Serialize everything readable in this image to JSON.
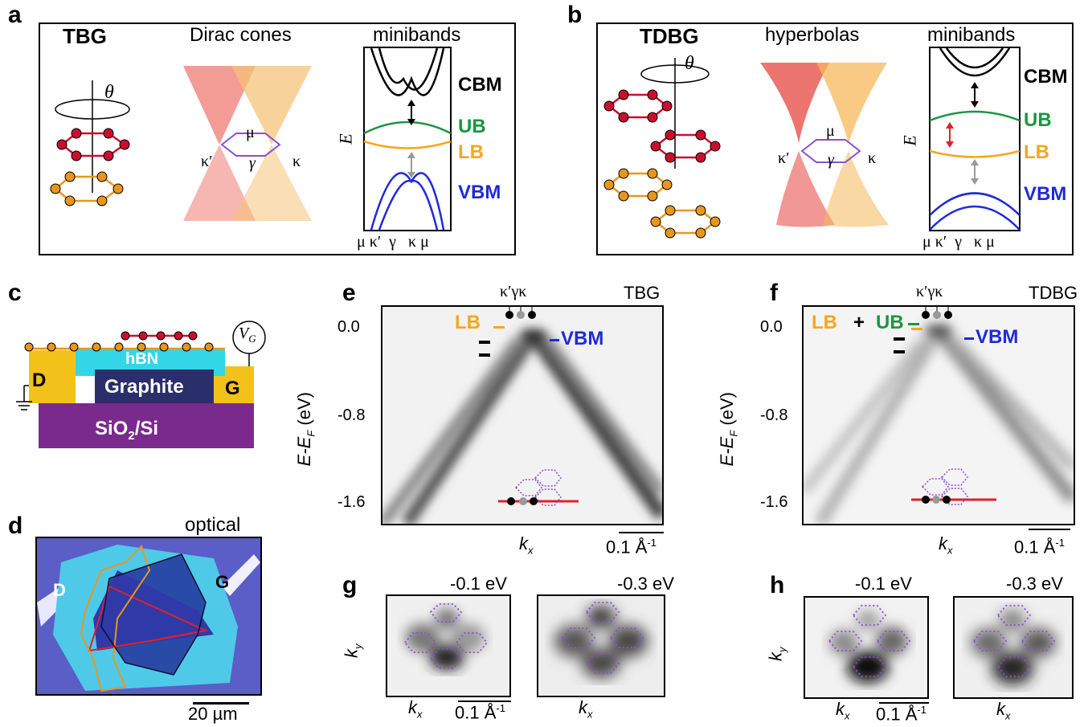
{
  "panels": {
    "a": "a",
    "b": "b",
    "c": "c",
    "d": "d",
    "e": "e",
    "f": "f",
    "g": "g",
    "h": "h"
  },
  "panel_a": {
    "title": "TBG",
    "theta": "θ",
    "cones_title": "Dirac cones",
    "minibands_title": "minibands",
    "energy_axis": "E",
    "mu": "μ",
    "kprime": "κ′",
    "gamma": "γ",
    "kappa": "κ",
    "band_labels": {
      "cbm": "CBM",
      "ub": "UB",
      "lb": "LB",
      "vbm": "VBM"
    },
    "k_ticks": "μ κ′  γ   κ μ"
  },
  "panel_b": {
    "title": "TDBG",
    "theta": "θ",
    "cones_title": "hyperbolas",
    "minibands_title": "minibands",
    "energy_axis": "E",
    "mu": "μ",
    "kprime": "κ′",
    "gamma": "γ",
    "kappa": "κ",
    "band_labels": {
      "cbm": "CBM",
      "ub": "UB",
      "lb": "LB",
      "vbm": "VBM"
    },
    "k_ticks": "μ κ′  γ   κ μ"
  },
  "panel_c": {
    "hbn": "hBN",
    "graphite": "Graphite",
    "substrate": "SiO",
    "substrate_sub": "2",
    "substrate_tail": "/Si",
    "drain": "D",
    "gate": "G",
    "vg": "V",
    "vg_sub": "G"
  },
  "panel_d": {
    "label": "optical",
    "drain": "D",
    "gate": "G",
    "scalebar": "20 µm"
  },
  "panel_e": {
    "sample": "TBG",
    "y_axis": "E-E",
    "y_axis_sub": "F",
    "y_axis_unit": " (eV)",
    "y_ticks": [
      "0.0",
      "-0.8",
      "-1.6"
    ],
    "x_axis": "k",
    "x_axis_sub": "x",
    "scalebar": "0.1 Å",
    "scalebar_sup": "-1",
    "k_points": "κ′γκ",
    "lb_label": "LB",
    "vbm_label": "VBM"
  },
  "panel_f": {
    "sample": "TDBG",
    "y_axis": "E-E",
    "y_axis_sub": "F",
    "y_axis_unit": " (eV)",
    "y_ticks": [
      "0.0",
      "-0.8",
      "-1.6"
    ],
    "x_axis": "k",
    "x_axis_sub": "x",
    "scalebar": "0.1 Å",
    "scalebar_sup": "-1",
    "k_points": "κ′γκ",
    "lb_label": "LB",
    "plus": "+",
    "ub_label": "UB",
    "vbm_label": "VBM"
  },
  "panel_g": {
    "energy_left": "-0.1 eV",
    "energy_right": "-0.3 eV",
    "ky": "k",
    "ky_sub": "y",
    "kx": "k",
    "kx_sub": "x",
    "scalebar": "0.1 Å",
    "scalebar_sup": "-1"
  },
  "panel_h": {
    "energy_left": "-0.1 eV",
    "energy_right": "-0.3 eV",
    "ky": "k",
    "ky_sub": "y",
    "kx": "k",
    "kx_sub": "x",
    "scalebar": "0.1 Å",
    "scalebar_sup": "-1"
  },
  "colors": {
    "red_lattice": "#c8102e",
    "orange_lattice": "#e8961e",
    "cbm": "#000000",
    "ub": "#1a9641",
    "lb": "#f5a623",
    "vbm": "#1f2bd9",
    "bz_purple": "#8a4fd1",
    "hbn": "#33d6e6",
    "graphite": "#2a2f6b",
    "contact": "#f2c21a",
    "substrate": "#7a2a8c"
  }
}
